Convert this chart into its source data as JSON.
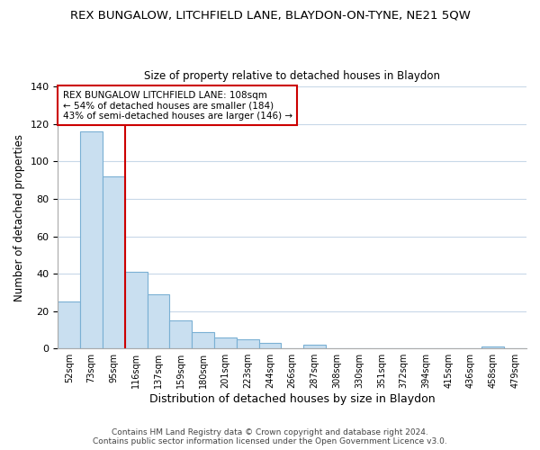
{
  "title": "REX BUNGALOW, LITCHFIELD LANE, BLAYDON-ON-TYNE, NE21 5QW",
  "subtitle": "Size of property relative to detached houses in Blaydon",
  "xlabel": "Distribution of detached houses by size in Blaydon",
  "ylabel": "Number of detached properties",
  "bin_labels": [
    "52sqm",
    "73sqm",
    "95sqm",
    "116sqm",
    "137sqm",
    "159sqm",
    "180sqm",
    "201sqm",
    "223sqm",
    "244sqm",
    "266sqm",
    "287sqm",
    "308sqm",
    "330sqm",
    "351sqm",
    "372sqm",
    "394sqm",
    "415sqm",
    "436sqm",
    "458sqm",
    "479sqm"
  ],
  "bar_values": [
    25,
    116,
    92,
    41,
    29,
    15,
    9,
    6,
    5,
    3,
    0,
    2,
    0,
    0,
    0,
    0,
    0,
    0,
    0,
    1,
    0
  ],
  "bar_color": "#c9dff0",
  "bar_edge_color": "#7ab0d4",
  "highlight_color": "#cc0000",
  "annotation_text": "REX BUNGALOW LITCHFIELD LANE: 108sqm\n← 54% of detached houses are smaller (184)\n43% of semi-detached houses are larger (146) →",
  "annotation_box_color": "#ffffff",
  "annotation_box_edge": "#cc0000",
  "ylim": [
    0,
    140
  ],
  "yticks": [
    0,
    20,
    40,
    60,
    80,
    100,
    120,
    140
  ],
  "footer_line1": "Contains HM Land Registry data © Crown copyright and database right 2024.",
  "footer_line2": "Contains public sector information licensed under the Open Government Licence v3.0.",
  "background_color": "#ffffff",
  "grid_color": "#c8d8e8"
}
